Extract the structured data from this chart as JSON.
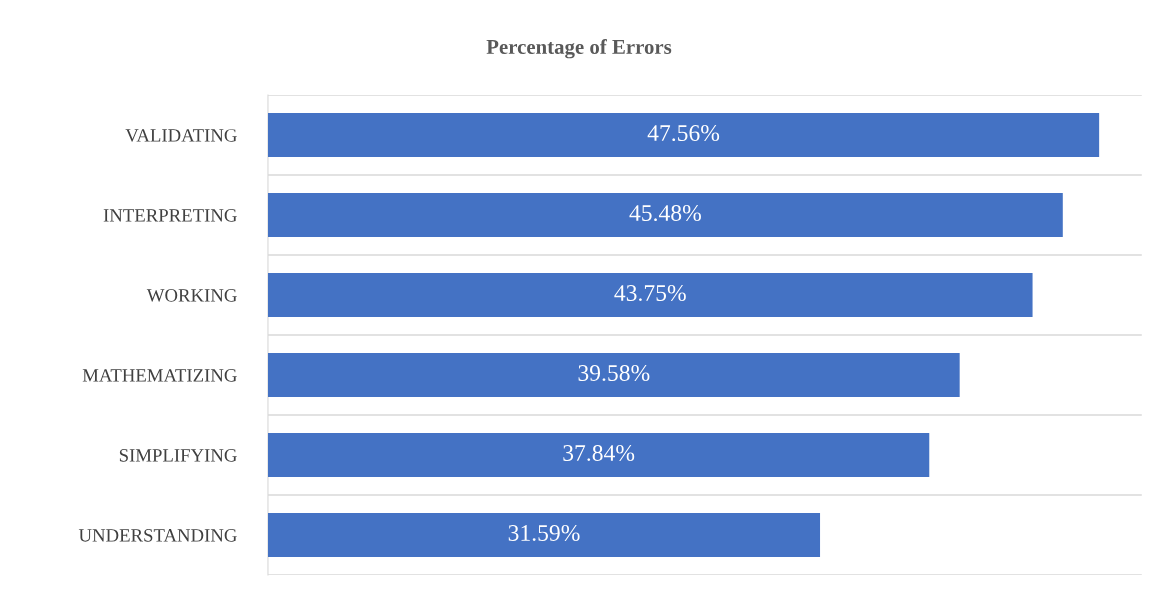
{
  "chart_data": {
    "type": "bar",
    "orientation": "horizontal",
    "title": "Percentage of Errors",
    "categories": [
      "VALIDATING",
      "INTERPRETING",
      "WORKING",
      "MATHEMATIZING",
      "SIMPLIFYING",
      "UNDERSTANDING"
    ],
    "values": [
      47.56,
      45.48,
      43.75,
      39.58,
      37.84,
      31.59
    ],
    "value_labels": [
      "47.56%",
      "45.48%",
      "43.75%",
      "39.58%",
      "37.84%",
      "31.59%"
    ],
    "color": "#4472c4",
    "xlim": [
      0,
      50
    ],
    "tick_labels": "y",
    "grid": "y"
  }
}
